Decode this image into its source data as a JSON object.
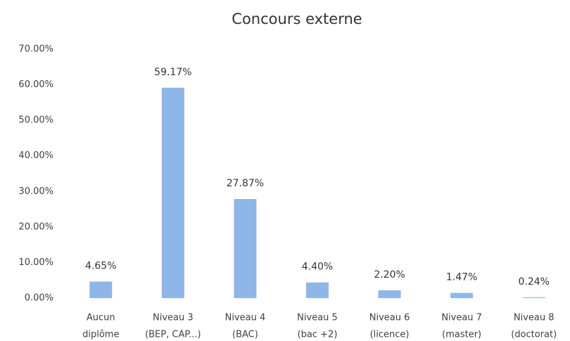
{
  "chart_data": {
    "type": "bar",
    "title": "Concours externe",
    "categories": [
      [
        "Aucun",
        "diplôme"
      ],
      [
        "Niveau 3",
        "(BEP, CAP...)"
      ],
      [
        "Niveau 4",
        "(BAC)"
      ],
      [
        "Niveau 5",
        "(bac +2)"
      ],
      [
        "Niveau 6",
        "(licence)"
      ],
      [
        "Niveau 7",
        "(master)"
      ],
      [
        "Niveau 8",
        "(doctorat)"
      ]
    ],
    "values": [
      4.65,
      59.17,
      27.87,
      4.4,
      2.2,
      1.47,
      0.24
    ],
    "value_labels": [
      "4.65%",
      "59.17%",
      "27.87%",
      "4.40%",
      "2.20%",
      "1.47%",
      "0.24%"
    ],
    "color": "#8fb6e8",
    "ylim": [
      0,
      70
    ],
    "yticks": [
      {
        "value": 0,
        "label": "0.00%"
      },
      {
        "value": 10,
        "label": "10.00%"
      },
      {
        "value": 20,
        "label": "20.00%"
      },
      {
        "value": 30,
        "label": "30.00%"
      },
      {
        "value": 40,
        "label": "40.00%"
      },
      {
        "value": 50,
        "label": "50.00%"
      },
      {
        "value": 60,
        "label": "60.00%"
      },
      {
        "value": 70,
        "label": "70.00%"
      }
    ],
    "grid": false
  }
}
